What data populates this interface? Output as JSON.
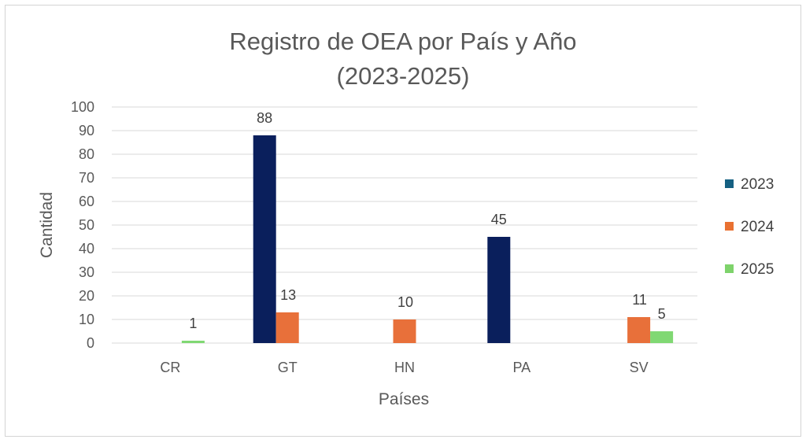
{
  "chart_data": {
    "type": "bar",
    "title_line1": "Registro de OEA por País y Año",
    "title_line2": "(2023-2025)",
    "xlabel": "Países",
    "ylabel": "Cantidad",
    "categories": [
      "CR",
      "GT",
      "HN",
      "PA",
      "SV"
    ],
    "ylim": [
      0,
      100
    ],
    "yticks": [
      0,
      10,
      20,
      30,
      40,
      50,
      60,
      70,
      80,
      90,
      100
    ],
    "grid": true,
    "legend_position": "right",
    "series": [
      {
        "name": "2023",
        "color": "#0a1f5c",
        "values": [
          null,
          88,
          null,
          45,
          null
        ]
      },
      {
        "name": "2024",
        "color": "#e8703a",
        "values": [
          null,
          13,
          10,
          null,
          11
        ]
      },
      {
        "name": "2025",
        "color": "#80d873",
        "values": [
          1,
          null,
          null,
          null,
          5
        ]
      }
    ],
    "legend_colors": {
      "2023": "#156082",
      "2024": "#e97132",
      "2025": "#7ed36b"
    }
  }
}
